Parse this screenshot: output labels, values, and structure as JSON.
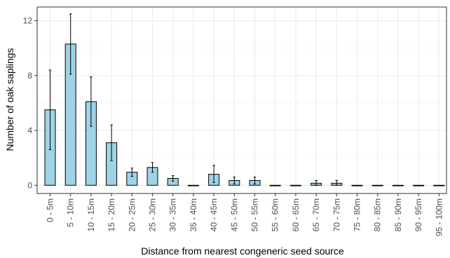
{
  "chart_data": {
    "type": "bar",
    "title": "",
    "xlabel": "Distance from nearest congeneric seed source",
    "ylabel": "Number of oak saplings",
    "ylim": [
      -0.6,
      13.0
    ],
    "yticks": [
      0,
      4,
      8,
      12
    ],
    "grid": true,
    "colors": {
      "bar_fill": "#9fd3e6",
      "bar_stroke": "#000000",
      "grid": "#ebebeb",
      "panel_border": "#333333"
    },
    "categories": [
      "0 - 5m",
      "5 - 10m",
      "10 - 15m",
      "15 - 20m",
      "20 - 25m",
      "25 - 30m",
      "30 - 35m",
      "35 - 40m",
      "40 - 45m",
      "45 - 50m",
      "50 - 55m",
      "55 - 60m",
      "60 - 65m",
      "65 - 70m",
      "70 - 75m",
      "75 - 80m",
      "80 - 85m",
      "85 - 90m",
      "90 - 95m",
      "95 - 100m"
    ],
    "values": [
      5.5,
      10.3,
      6.1,
      3.1,
      0.95,
      1.3,
      0.5,
      0,
      0.8,
      0.35,
      0.35,
      0,
      0,
      0.15,
      0.15,
      0,
      0,
      0,
      0,
      0
    ],
    "error_low": [
      2.6,
      8.1,
      4.3,
      1.8,
      0.65,
      0.95,
      0.3,
      0,
      0.2,
      0.1,
      0.1,
      0,
      0,
      0,
      0,
      0,
      0,
      0,
      0,
      0
    ],
    "error_high": [
      8.4,
      12.5,
      7.9,
      4.4,
      1.25,
      1.65,
      0.7,
      0,
      1.45,
      0.6,
      0.6,
      0,
      0,
      0.35,
      0.35,
      0,
      0,
      0,
      0,
      0
    ]
  }
}
